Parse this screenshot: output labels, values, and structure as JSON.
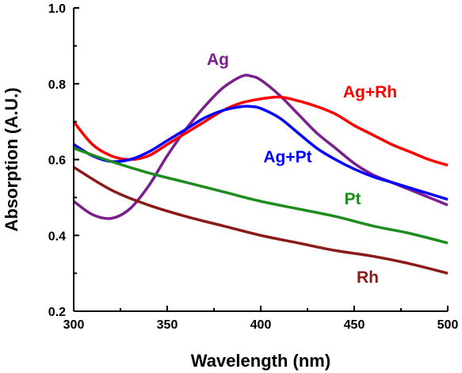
{
  "chart_data": {
    "type": "line",
    "xlabel": "Wavelength (nm)",
    "ylabel": "Absorption (A.U.)",
    "xlim": [
      300,
      500
    ],
    "ylim": [
      0.2,
      1.0
    ],
    "x_ticks": [
      "300",
      "350",
      "400",
      "450",
      "500"
    ],
    "y_ticks": [
      "0.2",
      "0.4",
      "0.6",
      "0.8",
      "1.0"
    ],
    "grid": false,
    "legend": "none",
    "series": [
      {
        "name": "Ag",
        "color": "#7b1f8e",
        "x": [
          300,
          310,
          320,
          330,
          340,
          350,
          360,
          370,
          380,
          390,
          395,
          400,
          410,
          420,
          430,
          440,
          450,
          460,
          470,
          480,
          490,
          500
        ],
        "y": [
          0.49,
          0.455,
          0.445,
          0.47,
          0.53,
          0.61,
          0.68,
          0.74,
          0.79,
          0.82,
          0.82,
          0.81,
          0.77,
          0.72,
          0.67,
          0.63,
          0.59,
          0.56,
          0.54,
          0.52,
          0.5,
          0.48
        ]
      },
      {
        "name": "Ag+Rh",
        "color": "#ff0000",
        "x": [
          300,
          310,
          320,
          330,
          340,
          350,
          360,
          370,
          380,
          390,
          400,
          410,
          420,
          430,
          440,
          450,
          460,
          470,
          480,
          490,
          500
        ],
        "y": [
          0.7,
          0.64,
          0.61,
          0.6,
          0.61,
          0.64,
          0.67,
          0.7,
          0.73,
          0.75,
          0.76,
          0.765,
          0.755,
          0.74,
          0.72,
          0.69,
          0.665,
          0.64,
          0.62,
          0.6,
          0.585
        ]
      },
      {
        "name": "Ag+Pt",
        "color": "#0000ff",
        "x": [
          300,
          310,
          320,
          330,
          340,
          350,
          360,
          370,
          380,
          390,
          395,
          400,
          410,
          420,
          430,
          440,
          450,
          460,
          470,
          480,
          490,
          500
        ],
        "y": [
          0.64,
          0.61,
          0.595,
          0.6,
          0.62,
          0.65,
          0.68,
          0.71,
          0.73,
          0.74,
          0.74,
          0.735,
          0.71,
          0.67,
          0.63,
          0.6,
          0.575,
          0.555,
          0.54,
          0.525,
          0.51,
          0.495
        ]
      },
      {
        "name": "Pt",
        "color": "#1e8c1e",
        "x": [
          300,
          320,
          340,
          360,
          380,
          400,
          420,
          440,
          460,
          480,
          500
        ],
        "y": [
          0.63,
          0.595,
          0.565,
          0.54,
          0.515,
          0.49,
          0.47,
          0.45,
          0.425,
          0.405,
          0.38
        ]
      },
      {
        "name": "Rh",
        "color": "#8b1a1a",
        "x": [
          300,
          320,
          340,
          360,
          380,
          400,
          420,
          440,
          460,
          480,
          500
        ],
        "y": [
          0.58,
          0.52,
          0.48,
          0.45,
          0.425,
          0.4,
          0.38,
          0.36,
          0.345,
          0.325,
          0.3
        ]
      }
    ]
  }
}
